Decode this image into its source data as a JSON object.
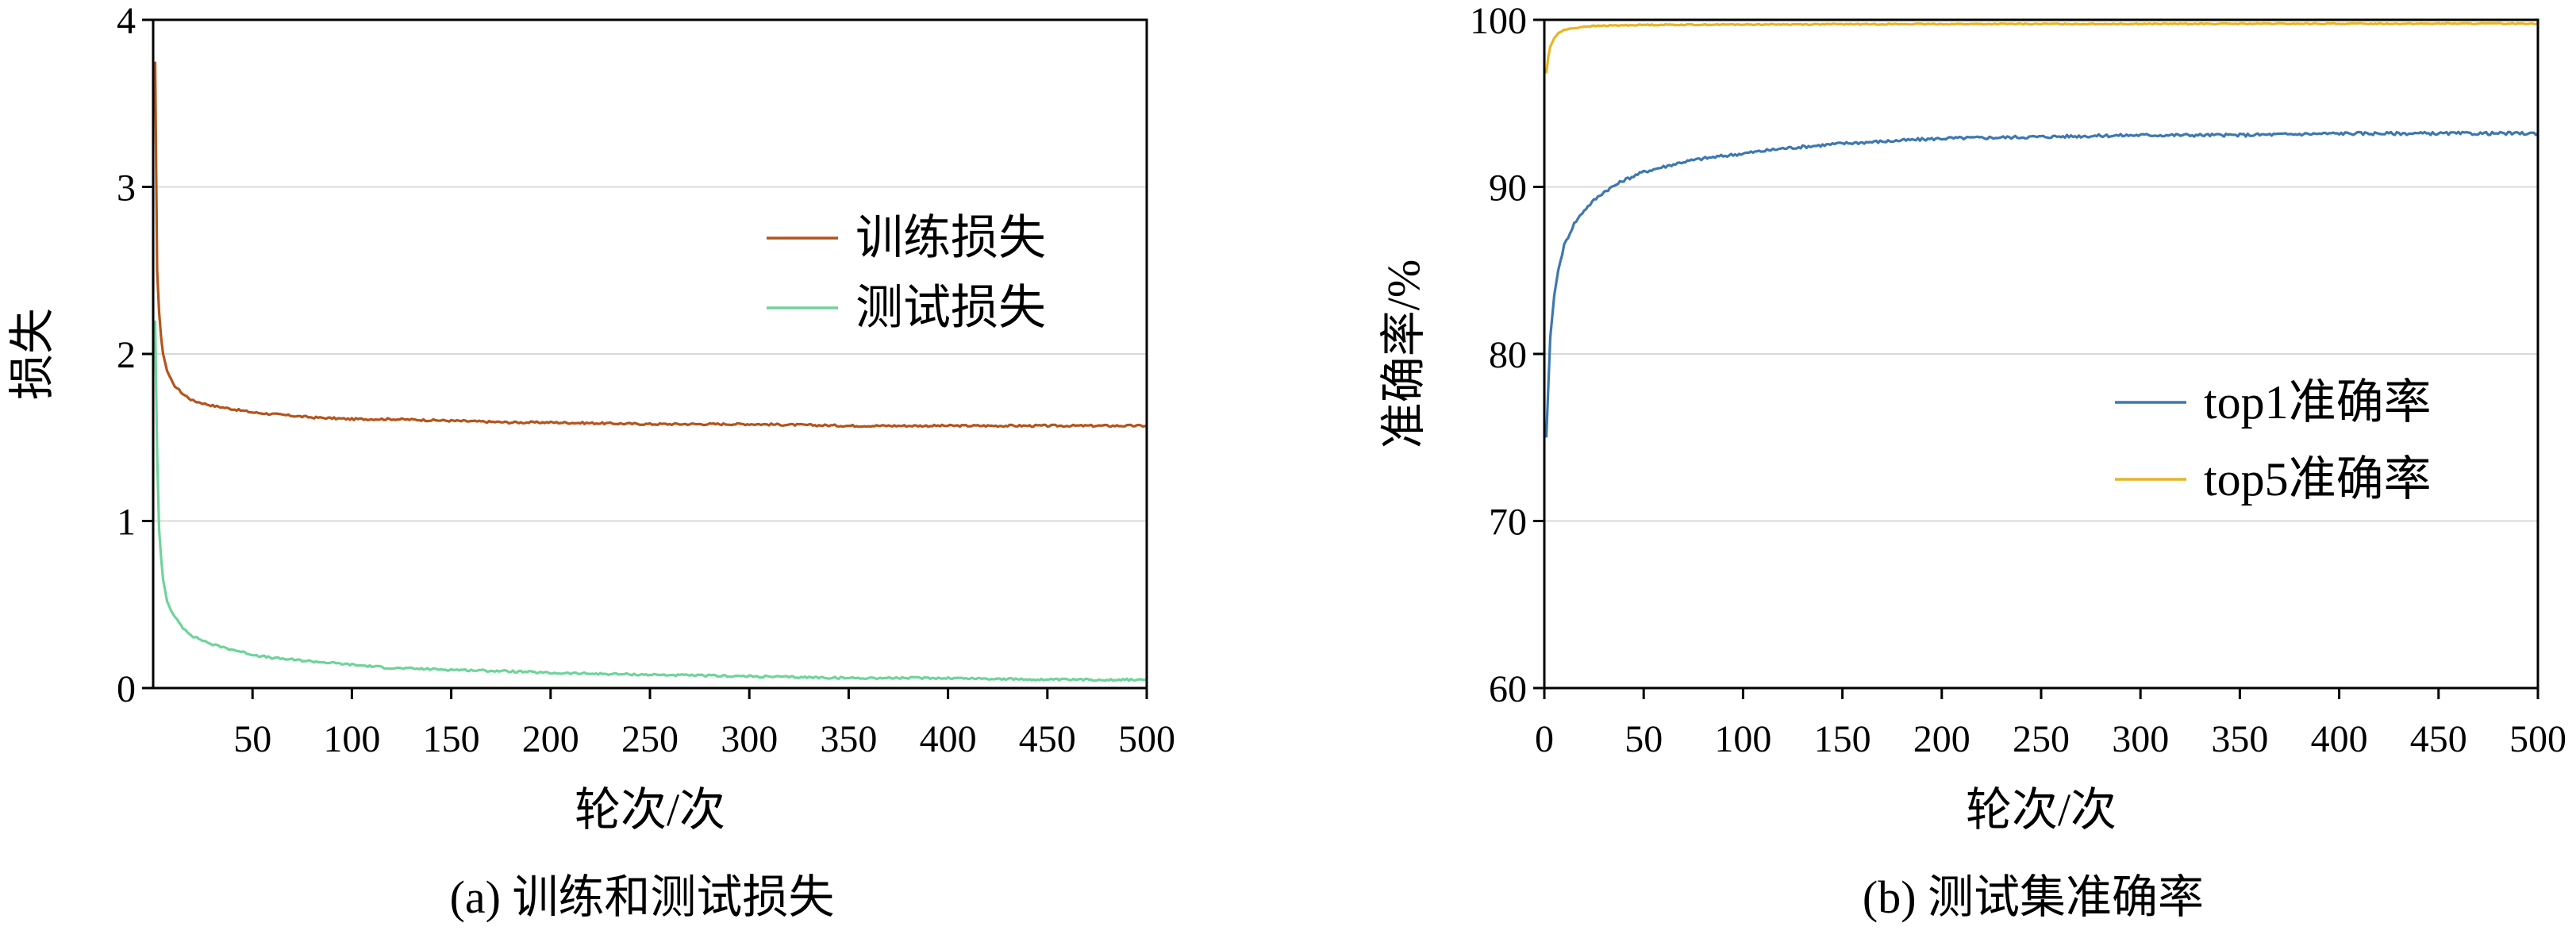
{
  "chart_data": [
    {
      "type": "line",
      "caption": "(a) 训练和测试损失",
      "xlabel": "轮次/次",
      "ylabel": "损失",
      "xlim": [
        0,
        500
      ],
      "ylim": [
        0,
        4
      ],
      "xticks": [
        "50",
        "100",
        "150",
        "200",
        "250",
        "300",
        "350",
        "400",
        "450",
        "500"
      ],
      "yticks": [
        "0",
        "1",
        "2",
        "3",
        "4"
      ],
      "grid": "horizontal",
      "legend_position": "upper-right",
      "series": [
        {
          "name": "训练损失",
          "color": "#b5541c",
          "x": [
            1,
            2,
            3,
            4,
            5,
            7,
            10,
            15,
            20,
            30,
            40,
            50,
            60,
            70,
            80,
            100,
            120,
            150,
            180,
            200,
            250,
            300,
            350,
            400,
            450,
            500
          ],
          "y": [
            3.75,
            2.5,
            2.25,
            2.1,
            2.0,
            1.9,
            1.82,
            1.76,
            1.72,
            1.69,
            1.67,
            1.65,
            1.64,
            1.63,
            1.62,
            1.61,
            1.61,
            1.6,
            1.59,
            1.59,
            1.58,
            1.58,
            1.57,
            1.57,
            1.57,
            1.57
          ]
        },
        {
          "name": "测试损失",
          "color": "#6fd49a",
          "x": [
            1,
            2,
            3,
            4,
            5,
            7,
            10,
            15,
            20,
            30,
            40,
            50,
            60,
            70,
            80,
            100,
            120,
            150,
            180,
            200,
            250,
            300,
            350,
            400,
            450,
            500
          ],
          "y": [
            2.2,
            1.4,
            0.95,
            0.78,
            0.65,
            0.52,
            0.44,
            0.36,
            0.31,
            0.26,
            0.23,
            0.2,
            0.18,
            0.17,
            0.16,
            0.14,
            0.12,
            0.11,
            0.1,
            0.09,
            0.08,
            0.07,
            0.06,
            0.06,
            0.05,
            0.05
          ]
        }
      ]
    },
    {
      "type": "line",
      "caption": "(b) 测试集准确率",
      "xlabel": "轮次/次",
      "ylabel": "准确率/%",
      "xlim": [
        0,
        500
      ],
      "ylim": [
        60,
        100
      ],
      "xticks": [
        "0",
        "50",
        "100",
        "150",
        "200",
        "250",
        "300",
        "350",
        "400",
        "450",
        "500"
      ],
      "yticks": [
        "60",
        "70",
        "80",
        "90",
        "100"
      ],
      "grid": "horizontal",
      "legend_position": "center-right",
      "series": [
        {
          "name": "top1准确率",
          "color": "#3d78b0",
          "x": [
            1,
            2,
            3,
            5,
            7,
            10,
            15,
            20,
            25,
            30,
            40,
            50,
            60,
            70,
            80,
            100,
            120,
            150,
            200,
            250,
            300,
            350,
            400,
            450,
            500
          ],
          "y": [
            75,
            78,
            81,
            83.5,
            85,
            86.5,
            87.8,
            88.6,
            89.2,
            89.7,
            90.4,
            90.9,
            91.2,
            91.5,
            91.7,
            92.0,
            92.3,
            92.6,
            92.9,
            93.0,
            93.1,
            93.1,
            93.2,
            93.2,
            93.2
          ]
        },
        {
          "name": "top5准确率",
          "color": "#e8b424",
          "x": [
            1,
            2,
            3,
            5,
            7,
            10,
            15,
            20,
            30,
            50,
            100,
            150,
            200,
            300,
            400,
            500
          ],
          "y": [
            96.8,
            97.8,
            98.4,
            98.9,
            99.2,
            99.4,
            99.5,
            99.6,
            99.65,
            99.7,
            99.72,
            99.74,
            99.75,
            99.76,
            99.77,
            99.78
          ]
        }
      ]
    }
  ]
}
